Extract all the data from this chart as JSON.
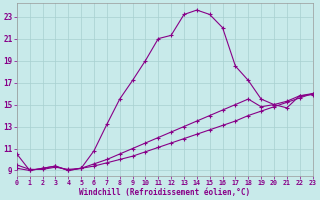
{
  "xlabel": "Windchill (Refroidissement éolien,°C)",
  "bg_color": "#c8eaea",
  "line_color": "#880088",
  "grid_color": "#a8d0d0",
  "xlim": [
    0,
    23
  ],
  "ylim": [
    8.5,
    24.2
  ],
  "xticks": [
    0,
    1,
    2,
    3,
    4,
    5,
    6,
    7,
    8,
    9,
    10,
    11,
    12,
    13,
    14,
    15,
    16,
    17,
    18,
    19,
    20,
    21,
    22,
    23
  ],
  "yticks": [
    9,
    11,
    13,
    15,
    17,
    19,
    21,
    23
  ],
  "line1_x": [
    0,
    1,
    2,
    3,
    4,
    5,
    6,
    7,
    8,
    9,
    10,
    11,
    12,
    13,
    14,
    15,
    16,
    17,
    18,
    19,
    20,
    21,
    22,
    23
  ],
  "line1_y": [
    10.5,
    9.0,
    9.2,
    9.4,
    9.0,
    9.2,
    10.8,
    13.2,
    15.5,
    17.2,
    19.0,
    21.0,
    21.3,
    23.2,
    23.6,
    23.2,
    22.0,
    18.5,
    17.2,
    15.5,
    15.0,
    14.7,
    15.8,
    15.9
  ],
  "line2_x": [
    0,
    1,
    2,
    3,
    4,
    5,
    6,
    7,
    8,
    9,
    10,
    11,
    12,
    13,
    14,
    15,
    16,
    17,
    18,
    19,
    20,
    21,
    22,
    23
  ],
  "line2_y": [
    9.2,
    9.0,
    9.2,
    9.4,
    9.0,
    9.2,
    9.6,
    10.0,
    10.5,
    11.0,
    11.5,
    12.0,
    12.5,
    13.0,
    13.5,
    14.0,
    14.5,
    15.0,
    15.5,
    14.8,
    15.0,
    15.3,
    15.8,
    16.0
  ],
  "line3_x": [
    0,
    1,
    2,
    3,
    4,
    5,
    6,
    7,
    8,
    9,
    10,
    11,
    12,
    13,
    14,
    15,
    16,
    17,
    18,
    19,
    20,
    21,
    22,
    23
  ],
  "line3_y": [
    9.5,
    9.1,
    9.1,
    9.3,
    9.1,
    9.2,
    9.4,
    9.7,
    10.0,
    10.3,
    10.7,
    11.1,
    11.5,
    11.9,
    12.3,
    12.7,
    13.1,
    13.5,
    14.0,
    14.4,
    14.8,
    15.2,
    15.6,
    16.0
  ]
}
